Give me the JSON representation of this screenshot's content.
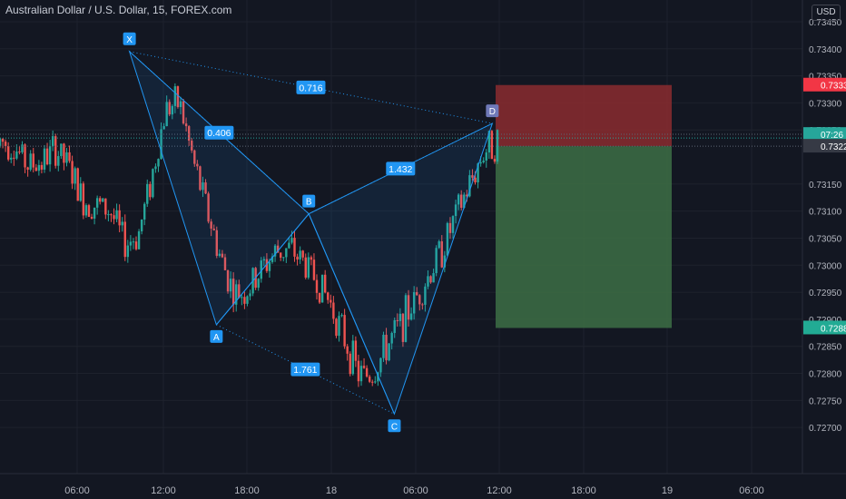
{
  "header": {
    "title": "Australian Dollar / U.S. Dollar, 15, FOREX.com",
    "currency": "USD"
  },
  "colors": {
    "background": "#131722",
    "grid": "#1e222d",
    "up": "#26a69a",
    "down": "#ef5350",
    "pattern_line": "#2196f3",
    "label_bg": "#2196f3",
    "stop_zone": "#8b2b2f",
    "target_zone": "#3d6e45"
  },
  "chart_data": {
    "type": "candlestick",
    "symbol": "AUDUSD",
    "interval": "15",
    "ylim": [
      0.7265,
      0.7346
    ],
    "y_ticks": [
      "0.73450",
      "0.73400",
      "0.73350",
      "0.73300",
      "0.73250",
      "0.73150",
      "0.73100",
      "0.73050",
      "0.73000",
      "0.72950",
      "0.72900",
      "0.72850",
      "0.72800",
      "0.72750",
      "0.72700"
    ],
    "x_ticks": [
      {
        "i": 0,
        "label": "06:00"
      },
      {
        "i": 1,
        "label": "12:00"
      },
      {
        "i": 2,
        "label": "18:00"
      },
      {
        "i": 3,
        "label": "18"
      },
      {
        "i": 4,
        "label": "06:00"
      },
      {
        "i": 5,
        "label": "12:00"
      },
      {
        "i": 6,
        "label": "18:00"
      },
      {
        "i": 7,
        "label": "19"
      },
      {
        "i": 8,
        "label": "06:00"
      }
    ],
    "price_labels": [
      {
        "value": 0.73333,
        "text": "0.73333",
        "kind": "stop"
      },
      {
        "value": 0.73235,
        "text": "07:26",
        "kind": "countdown"
      },
      {
        "value": 0.7322,
        "text": "0.73220",
        "kind": "entry"
      },
      {
        "value": 0.72884,
        "text": "0.72884",
        "kind": "target"
      }
    ],
    "pattern": {
      "points": [
        {
          "name": "X",
          "t": 0.5,
          "price": 0.73395
        },
        {
          "name": "A",
          "t": 6.8,
          "price": 0.7289
        },
        {
          "name": "B",
          "t": 13.5,
          "price": 0.73095
        },
        {
          "name": "C",
          "t": 19.7,
          "price": 0.72725
        },
        {
          "name": "D",
          "t": 26.8,
          "price": 0.73262
        }
      ],
      "ratios": [
        {
          "text": "0.406",
          "between": [
            "X",
            "B"
          ]
        },
        {
          "text": "1.761",
          "between": [
            "A",
            "C"
          ]
        },
        {
          "text": "1.432",
          "between": [
            "B",
            "D"
          ]
        },
        {
          "text": "0.716",
          "between": [
            "X",
            "D"
          ]
        }
      ]
    },
    "position": {
      "entry": 0.7322,
      "stop": 0.73333,
      "target": 0.72884
    },
    "ohlc": [
      [
        0.7322,
        0.7327,
        0.7317,
        0.7324
      ],
      [
        0.7324,
        0.7328,
        0.7318,
        0.732
      ],
      [
        0.732,
        0.7325,
        0.7315,
        0.7317
      ],
      [
        0.7317,
        0.7323,
        0.7313,
        0.7321
      ],
      [
        0.7321,
        0.7326,
        0.7316,
        0.7322
      ],
      [
        0.7322,
        0.7325,
        0.7312,
        0.7314
      ],
      [
        0.7314,
        0.7319,
        0.7308,
        0.731
      ],
      [
        0.731,
        0.7316,
        0.7306,
        0.7312
      ],
      [
        0.7312,
        0.7317,
        0.7305,
        0.7308
      ],
      [
        0.7308,
        0.7312,
        0.7296,
        0.73
      ],
      [
        0.73,
        0.7314,
        0.7298,
        0.7311
      ],
      [
        0.7311,
        0.7325,
        0.7309,
        0.7322
      ],
      [
        0.7322,
        0.734,
        0.732,
        0.7336
      ],
      [
        0.7336,
        0.7339,
        0.732,
        0.7324
      ],
      [
        0.7324,
        0.733,
        0.731,
        0.7314
      ],
      [
        0.7314,
        0.732,
        0.7302,
        0.7306
      ],
      [
        0.7306,
        0.7312,
        0.7294,
        0.7296
      ],
      [
        0.7296,
        0.7302,
        0.7289,
        0.7293
      ],
      [
        0.7293,
        0.7301,
        0.729,
        0.7298
      ],
      [
        0.7298,
        0.7304,
        0.7294,
        0.7301
      ],
      [
        0.7301,
        0.7307,
        0.7297,
        0.7304
      ],
      [
        0.7304,
        0.731,
        0.7299,
        0.7302
      ],
      [
        0.7302,
        0.7306,
        0.7296,
        0.7299
      ],
      [
        0.7299,
        0.7304,
        0.7292,
        0.7295
      ],
      [
        0.7295,
        0.73,
        0.7286,
        0.729
      ],
      [
        0.729,
        0.7295,
        0.7279,
        0.7282
      ],
      [
        0.7282,
        0.7287,
        0.7273,
        0.7277
      ],
      [
        0.7277,
        0.7285,
        0.7275,
        0.7283
      ],
      [
        0.7283,
        0.729,
        0.728,
        0.7287
      ],
      [
        0.7287,
        0.7294,
        0.7284,
        0.7291
      ],
      [
        0.7291,
        0.7298,
        0.7288,
        0.7296
      ],
      [
        0.7296,
        0.7303,
        0.7294,
        0.73
      ],
      [
        0.73,
        0.7308,
        0.7297,
        0.7306
      ],
      [
        0.7306,
        0.7314,
        0.7304,
        0.7312
      ],
      [
        0.7312,
        0.732,
        0.731,
        0.7318
      ],
      [
        0.7318,
        0.7327,
        0.7316,
        0.7324
      ],
      [
        0.7324,
        0.7327,
        0.7318,
        0.7322
      ]
    ]
  }
}
